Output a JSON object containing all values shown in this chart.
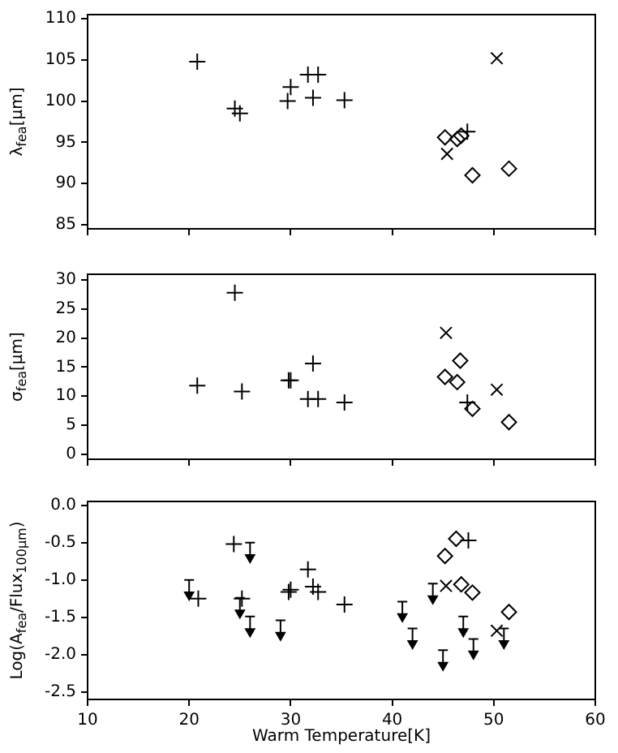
{
  "chart_data": [
    {
      "type": "scatter",
      "ylabel": "λ$_{fea}$[μm]",
      "xlim": [
        10,
        60
      ],
      "xticks": [
        10,
        20,
        30,
        40,
        50,
        60
      ],
      "ylim": [
        84.5,
        110.5
      ],
      "yticks": [
        85,
        90,
        95,
        100,
        105,
        110
      ],
      "tick_labels": "y",
      "grid": false,
      "legend": false,
      "series": [
        {
          "marker": "plus",
          "color": "#000000",
          "x": [
            20.8,
            24.5,
            25.0,
            29.7,
            30.0,
            31.7,
            32.7,
            32.2,
            35.3,
            47.4
          ],
          "values": [
            104.8,
            99.1,
            98.5,
            100.0,
            101.7,
            103.2,
            103.2,
            100.4,
            100.1,
            96.3
          ]
        },
        {
          "marker": "x",
          "color": "#000000",
          "x": [
            45.4,
            50.3
          ],
          "values": [
            93.6,
            105.2
          ]
        },
        {
          "marker": "diamond",
          "color": "#000000",
          "x": [
            45.2,
            46.4,
            46.8,
            47.9,
            51.5
          ],
          "values": [
            95.6,
            95.4,
            95.8,
            91.0,
            91.8
          ]
        }
      ]
    },
    {
      "type": "scatter",
      "ylabel": "σ$_{fea}$[μm]",
      "xlim": [
        10,
        60
      ],
      "xticks": [
        10,
        20,
        30,
        40,
        50,
        60
      ],
      "ylim": [
        -0.9,
        31
      ],
      "yticks": [
        0,
        5,
        10,
        15,
        20,
        25,
        30
      ],
      "tick_labels": "y",
      "grid": false,
      "legend": false,
      "series": [
        {
          "marker": "plus",
          "color": "#000000",
          "x": [
            20.8,
            24.5,
            25.2,
            29.8,
            30.0,
            31.7,
            32.7,
            32.2,
            35.3,
            47.4
          ],
          "values": [
            11.8,
            27.8,
            10.8,
            12.7,
            12.7,
            9.5,
            9.5,
            15.6,
            8.9,
            8.9
          ]
        },
        {
          "marker": "x",
          "color": "#000000",
          "x": [
            45.3,
            50.3
          ],
          "values": [
            20.9,
            11.1
          ]
        },
        {
          "marker": "diamond",
          "color": "#000000",
          "x": [
            45.2,
            46.4,
            46.7,
            47.9,
            51.5
          ],
          "values": [
            13.3,
            12.4,
            16.1,
            7.8,
            5.5
          ]
        }
      ]
    },
    {
      "type": "scatter",
      "xlabel": "Warm Temperature[K]",
      "ylabel": "Log(A$_{fea}$/Flux$_{100μm}$)",
      "xlim": [
        10,
        60
      ],
      "xticks": [
        10,
        20,
        30,
        40,
        50,
        60
      ],
      "ylim": [
        -2.6,
        0.05
      ],
      "yticks": [
        {
          "value": 0,
          "label": "0.0"
        },
        {
          "value": -0.5,
          "label": "-0.5"
        },
        {
          "value": -1,
          "label": "-1.0"
        },
        {
          "value": -1.5,
          "label": "-1.5"
        },
        {
          "value": -2,
          "label": "-2.0"
        },
        {
          "value": -2.5,
          "label": "-2.5"
        }
      ],
      "grid": false,
      "legend": false,
      "series": [
        {
          "marker": "plus",
          "color": "#000000",
          "x": [
            24.4,
            25.2,
            20.9,
            31.7,
            32.2,
            32.7,
            29.8,
            30.0,
            35.3,
            47.5
          ],
          "values": [
            -0.52,
            -1.25,
            -1.25,
            -0.86,
            -1.09,
            -1.16,
            -1.16,
            -1.13,
            -1.33,
            -0.47
          ]
        },
        {
          "marker": "x",
          "color": "#000000",
          "x": [
            45.3,
            50.3
          ],
          "values": [
            -1.08,
            -1.68
          ]
        },
        {
          "marker": "diamond",
          "color": "#000000",
          "x": [
            45.2,
            46.3,
            46.8,
            47.9,
            51.5
          ],
          "values": [
            -0.68,
            -0.45,
            -1.06,
            -1.17,
            -1.43
          ]
        },
        {
          "marker": "triangle",
          "color": "#000000",
          "x": [
            20,
            26,
            25,
            26,
            29,
            41,
            42,
            44,
            45,
            47,
            48,
            51
          ],
          "values": [
            -1.2,
            -0.7,
            -1.44,
            -1.69,
            -1.74,
            -1.49,
            -1.85,
            -1.25,
            -2.14,
            -1.69,
            -1.99,
            -1.85
          ],
          "errors": [
            [
              -1.2,
              -1.0
            ],
            [
              -0.7,
              -0.5
            ],
            [
              -1.44,
              -1.24
            ],
            [
              -1.69,
              -1.49
            ],
            [
              -1.74,
              -1.54
            ],
            [
              -1.49,
              -1.29
            ],
            [
              -1.85,
              -1.65
            ],
            [
              -1.25,
              -1.05
            ],
            [
              -2.14,
              -1.94
            ],
            [
              -1.69,
              -1.49
            ],
            [
              -1.99,
              -1.79
            ],
            [
              -1.85,
              -1.65
            ]
          ]
        }
      ]
    }
  ]
}
